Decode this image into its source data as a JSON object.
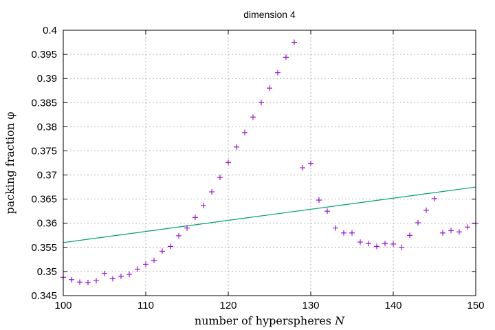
{
  "chart_data": {
    "type": "scatter",
    "title": "dimension 4",
    "xlabel": "number of hyperspheres",
    "xlabel_var": "N",
    "ylabel": "packing fraction",
    "ylabel_var": "φ",
    "xlim": [
      100,
      150
    ],
    "ylim": [
      0.345,
      0.4
    ],
    "x_ticks": [
      "100",
      "110",
      "120",
      "130",
      "140",
      "150"
    ],
    "y_ticks": [
      "0.345",
      "0.35",
      "0.355",
      "0.36",
      "0.365",
      "0.37",
      "0.375",
      "0.38",
      "0.385",
      "0.39",
      "0.395",
      "0.4"
    ],
    "grid": true,
    "colors": {
      "points": "#9400d3",
      "line": "#009e73"
    },
    "series": [
      {
        "kind": "points",
        "marker": "+",
        "x": [
          100,
          101,
          102,
          103,
          104,
          105,
          106,
          107,
          108,
          109,
          110,
          111,
          112,
          113,
          114,
          115,
          116,
          117,
          118,
          119,
          120,
          121,
          122,
          123,
          124,
          125,
          126,
          127,
          128,
          129,
          130,
          131,
          132,
          133,
          134,
          135,
          136,
          137,
          138,
          139,
          140,
          141,
          142,
          143,
          144,
          145,
          146,
          147,
          148,
          149,
          150
        ],
        "y": [
          0.3488,
          0.3483,
          0.3478,
          0.3477,
          0.3481,
          0.3496,
          0.3485,
          0.349,
          0.3494,
          0.3505,
          0.3515,
          0.3523,
          0.3542,
          0.3552,
          0.3574,
          0.359,
          0.3612,
          0.3637,
          0.3665,
          0.3695,
          0.3726,
          0.3758,
          0.3788,
          0.382,
          0.385,
          0.388,
          0.3912,
          0.3944,
          0.3975,
          0.3715,
          0.3724,
          0.3648,
          0.3625,
          0.359,
          0.358,
          0.358,
          0.3561,
          0.3558,
          0.3552,
          0.3558,
          0.3557,
          0.355,
          0.3575,
          0.3601,
          0.3627,
          0.3651,
          0.358,
          0.3585,
          0.3582,
          0.3592,
          0.36
        ]
      },
      {
        "kind": "line",
        "x": [
          100,
          150
        ],
        "y": [
          0.356,
          0.3675
        ]
      }
    ]
  }
}
